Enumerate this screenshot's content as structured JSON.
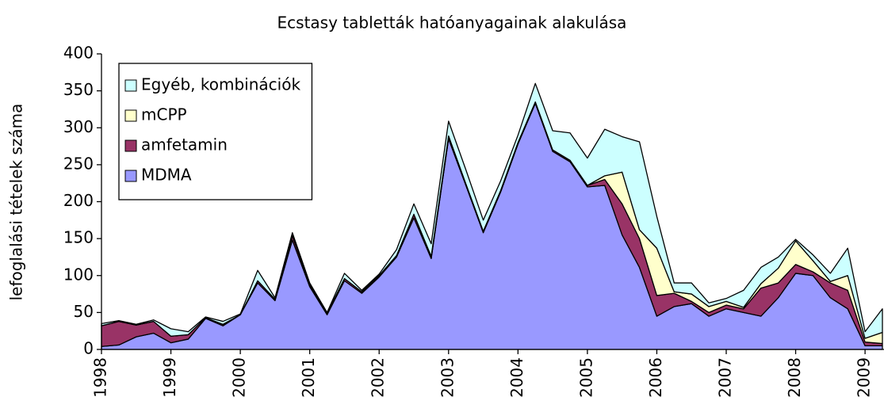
{
  "chart_data": {
    "type": "stacked_area",
    "title": "Ecstasy tabletták hatóanyagainak alakulása",
    "y_label": "lefoglalási tételek száma",
    "x": [
      1998,
      1998.25,
      1998.5,
      1998.75,
      1999,
      1999.25,
      1999.5,
      1999.75,
      2000,
      2000.25,
      2000.5,
      2000.75,
      2001,
      2001.25,
      2001.5,
      2001.75,
      2002,
      2002.25,
      2002.5,
      2002.75,
      2003,
      2003.25,
      2003.5,
      2003.75,
      2004,
      2004.25,
      2004.5,
      2004.75,
      2005,
      2005.25,
      2005.5,
      2005.75,
      2006,
      2006.25,
      2006.5,
      2006.75,
      2007,
      2007.25,
      2007.5,
      2007.75,
      2008,
      2008.25,
      2008.5,
      2008.75,
      2009,
      2009.25
    ],
    "series": [
      {
        "name": "MDMA",
        "color": "#9999ff",
        "values": [
          4,
          6,
          17,
          22,
          9,
          14,
          42,
          32,
          47,
          90,
          66,
          148,
          85,
          47,
          93,
          76,
          98,
          125,
          178,
          123,
          285,
          222,
          158,
          213,
          278,
          333,
          268,
          254,
          220,
          222,
          155,
          111,
          45,
          58,
          62,
          45,
          55,
          50,
          45,
          70,
          103,
          100,
          70,
          55,
          5,
          5
        ]
      },
      {
        "name": "amfetamin",
        "color": "#993366",
        "values": [
          28,
          32,
          16,
          16,
          9,
          6,
          1,
          2,
          0,
          3,
          2,
          6,
          3,
          2,
          3,
          2,
          2,
          2,
          5,
          3,
          4,
          2,
          2,
          2,
          2,
          2,
          2,
          2,
          2,
          8,
          42,
          39,
          28,
          18,
          3,
          5,
          5,
          5,
          38,
          20,
          12,
          5,
          20,
          25,
          5,
          3
        ]
      },
      {
        "name": "mCPP",
        "color": "#ffffcc",
        "values": [
          0,
          0,
          0,
          0,
          0,
          0,
          0,
          0,
          0,
          0,
          0,
          0,
          0,
          0,
          0,
          0,
          0,
          0,
          0,
          0,
          0,
          0,
          0,
          0,
          0,
          0,
          0,
          0,
          0,
          5,
          43,
          12,
          64,
          2,
          10,
          8,
          5,
          2,
          6,
          20,
          32,
          15,
          2,
          20,
          5,
          15
        ]
      },
      {
        "name": "Egyéb, kombinációk",
        "color": "#ccffff",
        "values": [
          3,
          1,
          1,
          2,
          10,
          4,
          1,
          4,
          1,
          14,
          2,
          4,
          2,
          1,
          7,
          2,
          2,
          8,
          14,
          17,
          20,
          19,
          15,
          13,
          10,
          25,
          26,
          37,
          37,
          63,
          48,
          119,
          43,
          12,
          15,
          5,
          4,
          23,
          22,
          15,
          2,
          8,
          11,
          37,
          9,
          32
        ]
      }
    ],
    "xlim": [
      1998,
      2009.25
    ],
    "xticks": [
      1998,
      1999,
      2000,
      2001,
      2002,
      2003,
      2004,
      2005,
      2006,
      2007,
      2008,
      2009
    ],
    "ylim": [
      0,
      400
    ],
    "yticks": [
      0,
      50,
      100,
      150,
      200,
      250,
      300,
      350,
      400
    ],
    "legend": "upper left"
  }
}
